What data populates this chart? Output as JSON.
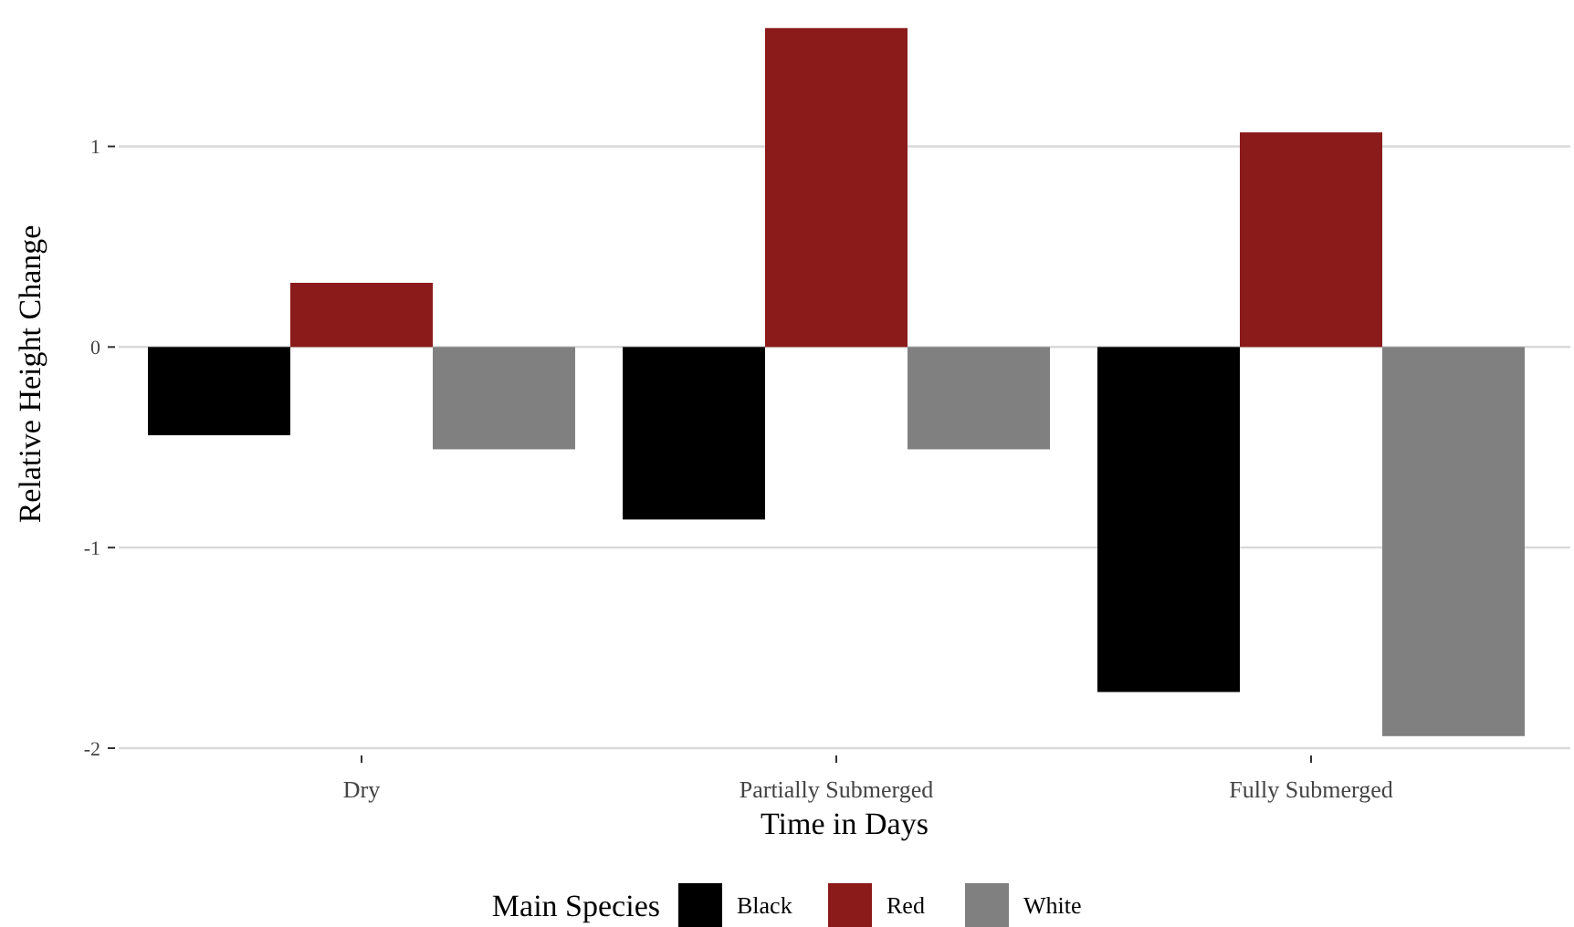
{
  "chart_data": {
    "type": "bar",
    "xlabel": "Time in Days",
    "ylabel": "Relative Height Change",
    "legend_title": "Main Species",
    "categories": [
      "Dry",
      "Partially Submerged",
      "Fully Submerged"
    ],
    "series": [
      {
        "name": "Black",
        "color": "#000000",
        "values": [
          -0.44,
          -0.86,
          -1.72
        ]
      },
      {
        "name": "Red",
        "color": "#8b1a1a",
        "values": [
          0.32,
          1.59,
          1.07
        ]
      },
      {
        "name": "White",
        "color": "#808080",
        "values": [
          -0.51,
          -0.51,
          -1.94
        ]
      }
    ],
    "ylim": [
      -2,
      1.73
    ],
    "yticks": [
      -2,
      -1,
      0,
      1
    ],
    "grid": "y",
    "legend": "bottom"
  }
}
